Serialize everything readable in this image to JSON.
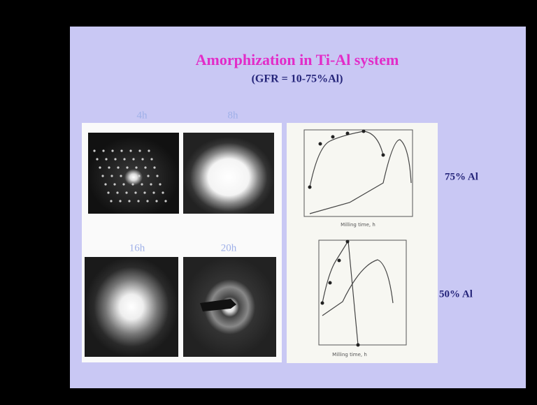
{
  "slide": {
    "title": "Amorphization in Ti-Al system",
    "subtitle": "(GFR = 10-75%Al)",
    "images": [
      {
        "label": "4h"
      },
      {
        "label": "8h"
      },
      {
        "label": "16h"
      },
      {
        "label": "20h"
      }
    ],
    "graphs": [
      {
        "label": "75% Al",
        "x_label": "Milling time, h"
      },
      {
        "label": "50% Al",
        "x_label": "Milling time, h"
      }
    ]
  }
}
